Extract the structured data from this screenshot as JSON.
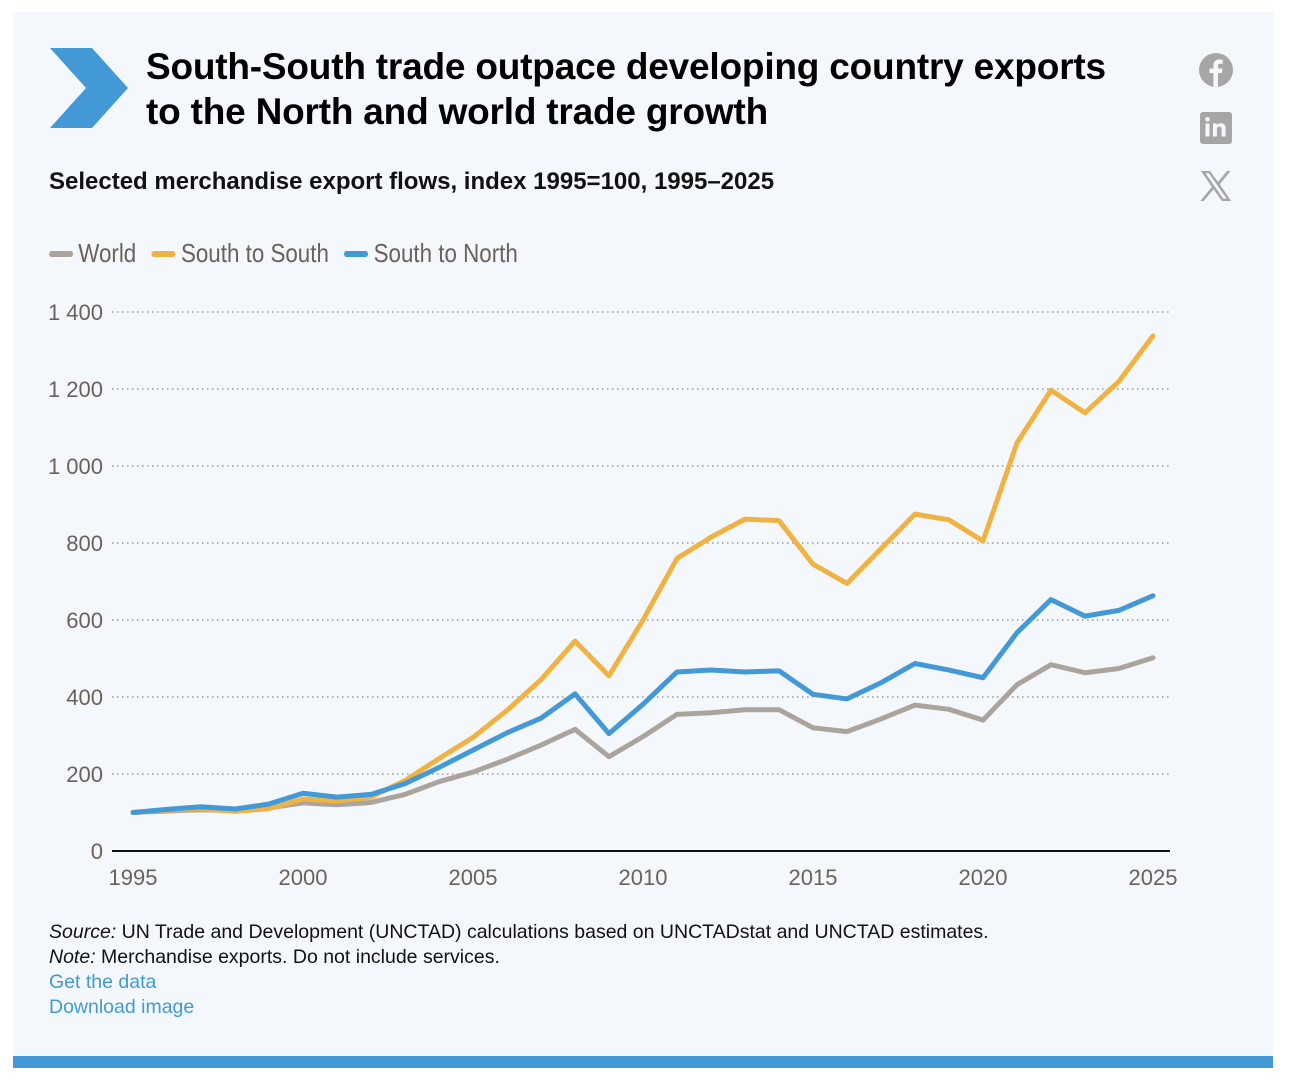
{
  "header": {
    "title": "South-South trade outpace developing country exports to the North and world trade growth",
    "subtitle": "Selected merchandise export flows, index 1995=100, 1995–2025",
    "icon": "chevron-right-icon",
    "accent_color": "#4399d6"
  },
  "social": [
    {
      "name": "facebook-icon",
      "label": "Facebook"
    },
    {
      "name": "linkedin-icon",
      "label": "LinkedIn"
    },
    {
      "name": "x-icon",
      "label": "X"
    }
  ],
  "chart_data": {
    "type": "line",
    "title": "Selected merchandise export flows, index 1995=100, 1995–2025",
    "xlabel": "",
    "ylabel": "",
    "x": [
      1995,
      1996,
      1997,
      1998,
      1999,
      2000,
      2001,
      2002,
      2003,
      2004,
      2005,
      2006,
      2007,
      2008,
      2009,
      2010,
      2011,
      2012,
      2013,
      2014,
      2015,
      2016,
      2017,
      2018,
      2019,
      2020,
      2021,
      2022,
      2023,
      2024,
      2025
    ],
    "xlim": [
      1995,
      2025
    ],
    "ylim": [
      0,
      1400
    ],
    "x_ticks": [
      1995,
      2000,
      2005,
      2010,
      2015,
      2020,
      2025
    ],
    "x_tick_labels": [
      "1995",
      "2000",
      "2005",
      "2010",
      "2015",
      "2020",
      "2025"
    ],
    "y_ticks": [
      0,
      200,
      400,
      600,
      800,
      1000,
      1200,
      1400
    ],
    "y_tick_labels": [
      "0",
      "200",
      "400",
      "600",
      "800",
      "1 000",
      "1 200",
      "1 400"
    ],
    "grid": "horizontal-dotted",
    "legend_position": "top-left",
    "series": [
      {
        "name": "World",
        "color": "#aba49d",
        "values": [
          100,
          104,
          107,
          105,
          112,
          125,
          120,
          126,
          147,
          180,
          205,
          238,
          275,
          316,
          245,
          297,
          355,
          359,
          367,
          367,
          320,
          310,
          343,
          379,
          368,
          340,
          432,
          484,
          463,
          474,
          502
        ]
      },
      {
        "name": "South to South",
        "color": "#f0b343",
        "values": [
          100,
          106,
          110,
          103,
          110,
          135,
          130,
          140,
          183,
          240,
          295,
          365,
          445,
          545,
          455,
          600,
          760,
          815,
          862,
          858,
          745,
          695,
          785,
          875,
          860,
          805,
          1060,
          1197,
          1138,
          1220,
          1338
        ]
      },
      {
        "name": "South to North",
        "color": "#4399d6",
        "values": [
          100,
          108,
          115,
          109,
          122,
          150,
          140,
          147,
          175,
          217,
          262,
          307,
          345,
          408,
          305,
          381,
          465,
          470,
          465,
          468,
          407,
          395,
          437,
          487,
          470,
          450,
          567,
          653,
          610,
          625,
          663
        ]
      }
    ]
  },
  "footer": {
    "source_label": "Source:",
    "source_text": " UN Trade and Development (UNCTAD) calculations based on UNCTADstat and UNCTAD estimates.",
    "note_label": "Note:",
    "note_text": " Merchandise exports. Do not include services.",
    "links": [
      "Get the data",
      "Download image"
    ]
  }
}
